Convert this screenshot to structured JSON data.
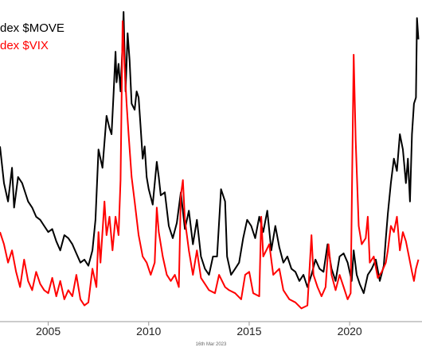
{
  "chart_data": {
    "type": "line",
    "footnote": "16th Mar 2023",
    "x_ticks": [
      "2005",
      "2010",
      "2015",
      "2020"
    ],
    "x_range": [
      2002.6,
      2023.6
    ],
    "y_range": [
      0,
      100
    ],
    "grid": false,
    "legend_position": "top-left",
    "series": [
      {
        "name": "dex $MOVE",
        "color": "#000000",
        "points": [
          [
            2002.6,
            56
          ],
          [
            2002.8,
            44
          ],
          [
            2003.0,
            38
          ],
          [
            2003.2,
            49
          ],
          [
            2003.3,
            36
          ],
          [
            2003.5,
            46
          ],
          [
            2003.7,
            44
          ],
          [
            2003.9,
            40
          ],
          [
            2004.0,
            38
          ],
          [
            2004.2,
            36
          ],
          [
            2004.4,
            33
          ],
          [
            2004.6,
            32
          ],
          [
            2004.8,
            30
          ],
          [
            2005.0,
            28
          ],
          [
            2005.2,
            29
          ],
          [
            2005.4,
            25
          ],
          [
            2005.6,
            22
          ],
          [
            2005.8,
            27
          ],
          [
            2006.0,
            26
          ],
          [
            2006.2,
            24
          ],
          [
            2006.4,
            21
          ],
          [
            2006.6,
            18
          ],
          [
            2006.8,
            19
          ],
          [
            2007.0,
            17
          ],
          [
            2007.2,
            22
          ],
          [
            2007.35,
            32
          ],
          [
            2007.5,
            55
          ],
          [
            2007.7,
            49
          ],
          [
            2007.9,
            66
          ],
          [
            2008.05,
            62
          ],
          [
            2008.15,
            60
          ],
          [
            2008.25,
            73
          ],
          [
            2008.35,
            87
          ],
          [
            2008.4,
            77
          ],
          [
            2008.5,
            83
          ],
          [
            2008.6,
            74
          ],
          [
            2008.7,
            90
          ],
          [
            2008.75,
            100
          ],
          [
            2008.85,
            74
          ],
          [
            2008.95,
            93
          ],
          [
            2009.05,
            84
          ],
          [
            2009.15,
            70
          ],
          [
            2009.3,
            68
          ],
          [
            2009.4,
            74
          ],
          [
            2009.5,
            72
          ],
          [
            2009.6,
            62
          ],
          [
            2009.7,
            52
          ],
          [
            2009.8,
            56
          ],
          [
            2009.9,
            46
          ],
          [
            2010.0,
            42
          ],
          [
            2010.2,
            37
          ],
          [
            2010.4,
            51
          ],
          [
            2010.5,
            46
          ],
          [
            2010.6,
            40
          ],
          [
            2010.8,
            41
          ],
          [
            2011.0,
            30
          ],
          [
            2011.2,
            26
          ],
          [
            2011.4,
            31
          ],
          [
            2011.6,
            41
          ],
          [
            2011.8,
            29
          ],
          [
            2012.0,
            35
          ],
          [
            2012.2,
            24
          ],
          [
            2012.4,
            32
          ],
          [
            2012.6,
            20
          ],
          [
            2012.8,
            16
          ],
          [
            2013.0,
            14
          ],
          [
            2013.2,
            20
          ],
          [
            2013.4,
            20
          ],
          [
            2013.6,
            42
          ],
          [
            2013.8,
            38
          ],
          [
            2013.9,
            20
          ],
          [
            2014.1,
            14
          ],
          [
            2014.3,
            16
          ],
          [
            2014.5,
            18
          ],
          [
            2014.7,
            26
          ],
          [
            2014.9,
            32
          ],
          [
            2015.1,
            30
          ],
          [
            2015.3,
            26
          ],
          [
            2015.5,
            33
          ],
          [
            2015.7,
            28
          ],
          [
            2015.9,
            35
          ],
          [
            2016.1,
            22
          ],
          [
            2016.3,
            30
          ],
          [
            2016.5,
            23
          ],
          [
            2016.7,
            18
          ],
          [
            2016.9,
            20
          ],
          [
            2017.1,
            16
          ],
          [
            2017.3,
            15
          ],
          [
            2017.5,
            12
          ],
          [
            2017.7,
            14
          ],
          [
            2017.9,
            10
          ],
          [
            2018.1,
            14
          ],
          [
            2018.3,
            19
          ],
          [
            2018.5,
            16
          ],
          [
            2018.7,
            15
          ],
          [
            2018.9,
            24
          ],
          [
            2019.1,
            16
          ],
          [
            2019.3,
            12
          ],
          [
            2019.5,
            20
          ],
          [
            2019.7,
            21
          ],
          [
            2019.9,
            18
          ],
          [
            2020.1,
            12
          ],
          [
            2020.2,
            22
          ],
          [
            2020.35,
            14
          ],
          [
            2020.5,
            11
          ],
          [
            2020.7,
            8
          ],
          [
            2020.9,
            14
          ],
          [
            2021.1,
            16
          ],
          [
            2021.3,
            19
          ],
          [
            2021.5,
            12
          ],
          [
            2021.7,
            17
          ],
          [
            2021.8,
            26
          ],
          [
            2021.9,
            34
          ],
          [
            2022.05,
            44
          ],
          [
            2022.2,
            52
          ],
          [
            2022.35,
            48
          ],
          [
            2022.5,
            60
          ],
          [
            2022.65,
            55
          ],
          [
            2022.8,
            44
          ],
          [
            2022.9,
            52
          ],
          [
            2023.0,
            38
          ],
          [
            2023.1,
            60
          ],
          [
            2023.2,
            70
          ],
          [
            2023.3,
            72
          ],
          [
            2023.35,
            98
          ],
          [
            2023.42,
            91
          ]
        ]
      },
      {
        "name": "dex $VIX",
        "color": "#ff0000",
        "points": [
          [
            2002.6,
            28
          ],
          [
            2002.8,
            24
          ],
          [
            2003.0,
            18
          ],
          [
            2003.2,
            22
          ],
          [
            2003.4,
            15
          ],
          [
            2003.6,
            10
          ],
          [
            2003.8,
            19
          ],
          [
            2004.0,
            12
          ],
          [
            2004.2,
            9
          ],
          [
            2004.4,
            15
          ],
          [
            2004.6,
            11
          ],
          [
            2004.8,
            9
          ],
          [
            2005.0,
            8
          ],
          [
            2005.2,
            13
          ],
          [
            2005.4,
            7
          ],
          [
            2005.6,
            12
          ],
          [
            2005.8,
            6
          ],
          [
            2006.0,
            9
          ],
          [
            2006.2,
            7
          ],
          [
            2006.4,
            14
          ],
          [
            2006.6,
            6
          ],
          [
            2006.8,
            4
          ],
          [
            2007.0,
            5
          ],
          [
            2007.2,
            16
          ],
          [
            2007.4,
            10
          ],
          [
            2007.5,
            28
          ],
          [
            2007.6,
            18
          ],
          [
            2007.8,
            38
          ],
          [
            2007.9,
            27
          ],
          [
            2008.05,
            33
          ],
          [
            2008.2,
            22
          ],
          [
            2008.35,
            33
          ],
          [
            2008.5,
            27
          ],
          [
            2008.6,
            45
          ],
          [
            2008.7,
            97
          ],
          [
            2008.8,
            82
          ],
          [
            2008.9,
            70
          ],
          [
            2009.0,
            60
          ],
          [
            2009.15,
            46
          ],
          [
            2009.3,
            38
          ],
          [
            2009.5,
            27
          ],
          [
            2009.7,
            20
          ],
          [
            2009.9,
            18
          ],
          [
            2010.1,
            14
          ],
          [
            2010.3,
            18
          ],
          [
            2010.4,
            36
          ],
          [
            2010.5,
            28
          ],
          [
            2010.7,
            20
          ],
          [
            2010.9,
            14
          ],
          [
            2011.1,
            12
          ],
          [
            2011.3,
            14
          ],
          [
            2011.5,
            10
          ],
          [
            2011.6,
            40
          ],
          [
            2011.7,
            45
          ],
          [
            2011.8,
            32
          ],
          [
            2012.0,
            22
          ],
          [
            2012.2,
            14
          ],
          [
            2012.4,
            22
          ],
          [
            2012.6,
            13
          ],
          [
            2012.8,
            11
          ],
          [
            2013.0,
            9
          ],
          [
            2013.3,
            8
          ],
          [
            2013.5,
            14
          ],
          [
            2013.8,
            10
          ],
          [
            2014.0,
            9
          ],
          [
            2014.3,
            8
          ],
          [
            2014.6,
            6
          ],
          [
            2014.8,
            14
          ],
          [
            2015.0,
            15
          ],
          [
            2015.2,
            8
          ],
          [
            2015.5,
            7
          ],
          [
            2015.6,
            33
          ],
          [
            2015.7,
            20
          ],
          [
            2016.0,
            24
          ],
          [
            2016.2,
            14
          ],
          [
            2016.5,
            16
          ],
          [
            2016.7,
            9
          ],
          [
            2017.0,
            6
          ],
          [
            2017.3,
            5
          ],
          [
            2017.6,
            3
          ],
          [
            2017.9,
            4
          ],
          [
            2018.1,
            27
          ],
          [
            2018.2,
            14
          ],
          [
            2018.4,
            10
          ],
          [
            2018.6,
            7
          ],
          [
            2018.8,
            10
          ],
          [
            2018.95,
            24
          ],
          [
            2019.1,
            14
          ],
          [
            2019.3,
            9
          ],
          [
            2019.5,
            14
          ],
          [
            2019.7,
            10
          ],
          [
            2019.9,
            6
          ],
          [
            2020.05,
            8
          ],
          [
            2020.2,
            86
          ],
          [
            2020.3,
            58
          ],
          [
            2020.45,
            30
          ],
          [
            2020.6,
            24
          ],
          [
            2020.8,
            26
          ],
          [
            2020.9,
            33
          ],
          [
            2021.0,
            18
          ],
          [
            2021.2,
            20
          ],
          [
            2021.4,
            13
          ],
          [
            2021.6,
            15
          ],
          [
            2021.8,
            18
          ],
          [
            2021.9,
            22
          ],
          [
            2022.05,
            30
          ],
          [
            2022.2,
            28
          ],
          [
            2022.35,
            33
          ],
          [
            2022.5,
            22
          ],
          [
            2022.65,
            28
          ],
          [
            2022.8,
            25
          ],
          [
            2022.95,
            20
          ],
          [
            2023.1,
            15
          ],
          [
            2023.2,
            12
          ],
          [
            2023.3,
            16
          ],
          [
            2023.42,
            19
          ]
        ]
      }
    ]
  }
}
